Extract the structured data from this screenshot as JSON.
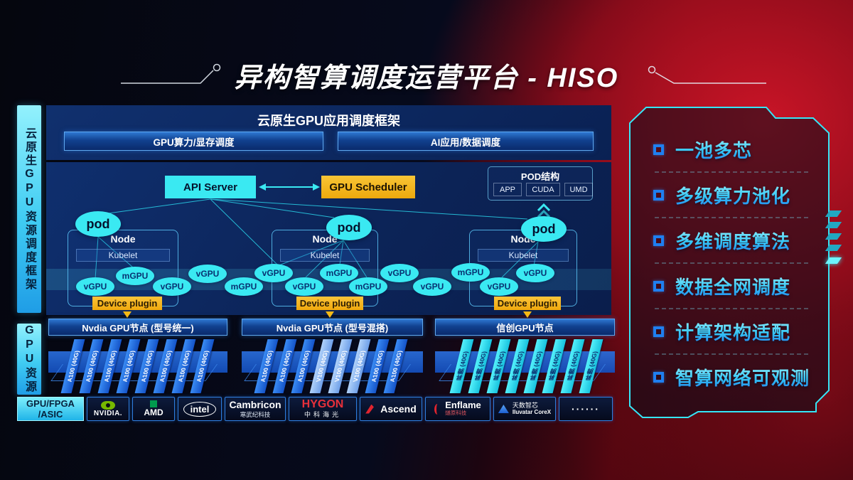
{
  "title": "异构智算调度运营平台 - HISO",
  "left_rails": {
    "top": "云原生GPU资源调度框架",
    "bottom": "GPU资源"
  },
  "chip_box": {
    "line1": "GPU/FPGA",
    "line2": "/ASIC"
  },
  "scheduling_panel": {
    "title": "云原生GPU应用调度框架",
    "left_bar": "GPU算力/显存调度",
    "right_bar": "AI应用/数据调度"
  },
  "control": {
    "api_server": "API Server",
    "gpu_scheduler": "GPU Scheduler"
  },
  "pod_struct": {
    "title": "POD结构",
    "cells": [
      "APP",
      "CUDA",
      "UMD"
    ]
  },
  "nodes": [
    {
      "title": "Node",
      "kubelet": "Kubelet",
      "device_plugin": "Device plugin",
      "pod": "pod"
    },
    {
      "title": "Node",
      "kubelet": "Kubelet",
      "device_plugin": "Device plugin",
      "pod": "pod"
    },
    {
      "title": "Node",
      "kubelet": "Kubelet",
      "device_plugin": "Device plugin",
      "pod": "pod"
    }
  ],
  "ellipses": [
    "vGPU",
    "mGPU",
    "vGPU",
    "vGPU",
    "mGPU",
    "vGPU",
    "vGPU",
    "mGPU",
    "mGPU",
    "vGPU",
    "vGPU",
    "mGPU",
    "vGPU",
    "vGPU"
  ],
  "gpu_nodes": [
    {
      "bar": "Nvdia GPU节点 (型号统一)",
      "cards": [
        {
          "label": "A100 (40G)",
          "variant": "blue"
        },
        {
          "label": "A100 (40G)",
          "variant": "blue"
        },
        {
          "label": "A100 (40G)",
          "variant": "blue"
        },
        {
          "label": "A100 (40G)",
          "variant": "blue"
        },
        {
          "label": "A100 (40G)",
          "variant": "blue"
        },
        {
          "label": "A100 (40G)",
          "variant": "blue"
        },
        {
          "label": "A100 (40G)",
          "variant": "blue"
        },
        {
          "label": "A100 (40G)",
          "variant": "blue"
        }
      ]
    },
    {
      "bar": "Nvdia GPU节点 (型号混搭)",
      "cards": [
        {
          "label": "A100 (40G)",
          "variant": "blue"
        },
        {
          "label": "A100 (40G)",
          "variant": "blue"
        },
        {
          "label": "A100 (40G)",
          "variant": "blue"
        },
        {
          "label": "V100 (40G)",
          "variant": "light"
        },
        {
          "label": "V100 (40G)",
          "variant": "light"
        },
        {
          "label": "V100 (40G)",
          "variant": "light"
        },
        {
          "label": "A100 (40G)",
          "variant": "blue"
        },
        {
          "label": "A100 (40G)",
          "variant": "blue"
        }
      ]
    },
    {
      "bar": "信创GPU节点",
      "cards": [
        {
          "label": "昇腾 (40G)",
          "variant": "cyan"
        },
        {
          "label": "昇腾 (40G)",
          "variant": "cyan"
        },
        {
          "label": "昇腾 (40G)",
          "variant": "cyan"
        },
        {
          "label": "昇腾 (40G)",
          "variant": "cyan"
        },
        {
          "label": "昇腾 (40G)",
          "variant": "cyan"
        },
        {
          "label": "昇腾 (40G)",
          "variant": "cyan"
        },
        {
          "label": "昇腾 (40G)",
          "variant": "cyan"
        },
        {
          "label": "昇腾 (40G)",
          "variant": "cyan"
        }
      ]
    }
  ],
  "vendors": {
    "nvidia": "NVIDIA.",
    "amd": "AMD",
    "intel": "intel",
    "cambricon": {
      "line1": "Cambricon",
      "line2": "寒武纪科技"
    },
    "hygon": {
      "line1": "HYGON",
      "line2": "中科海光"
    },
    "ascend": "Ascend",
    "enflame": {
      "line1": "Enflame",
      "line2": "燧原科技"
    },
    "iluvatar": {
      "line1": "天数智芯",
      "line2": "Iluvatar CoreX"
    },
    "more": "······"
  },
  "features": [
    "一池多芯",
    "多级算力池化",
    "多维调度算法",
    "数据全网调度",
    "计算架构适配",
    "智算网络可观测"
  ],
  "colors": {
    "accent_cyan": "#3ae9f2",
    "accent_yellow": "#f5b915",
    "card_blue": "#1d6be6",
    "card_light": "#8fb9f2",
    "card_cyan": "#35e6f7",
    "brand_red": "#c41428",
    "nvidia_green": "#76b900",
    "amd_green": "#009a4e"
  }
}
